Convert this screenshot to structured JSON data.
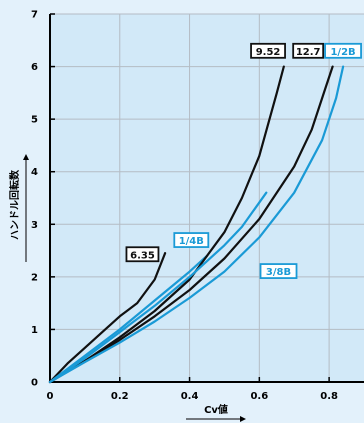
{
  "chart_data": {
    "type": "line",
    "xlabel": "Cv値",
    "ylabel": "ハンドル回転数",
    "xlim": [
      0,
      0.9
    ],
    "ylim": [
      0,
      7
    ],
    "x_ticks": [
      "0",
      "0.2",
      "0.4",
      "0.6",
      "0.8"
    ],
    "y_ticks": [
      "0",
      "1",
      "2",
      "3",
      "4",
      "5",
      "6",
      "7"
    ],
    "grid": true,
    "series": [
      {
        "name": "6.35",
        "color": "#111111",
        "label_box": "black",
        "points": [
          [
            0,
            0
          ],
          [
            0.05,
            0.35
          ],
          [
            0.1,
            0.65
          ],
          [
            0.15,
            0.95
          ],
          [
            0.2,
            1.25
          ],
          [
            0.25,
            1.5
          ],
          [
            0.3,
            1.95
          ],
          [
            0.33,
            2.45
          ]
        ]
      },
      {
        "name": "1/4B",
        "color": "#1a9ad6",
        "label_box": "blue",
        "points": [
          [
            0,
            0
          ],
          [
            0.1,
            0.5
          ],
          [
            0.2,
            1.0
          ],
          [
            0.3,
            1.55
          ],
          [
            0.4,
            2.1
          ],
          [
            0.45,
            2.4
          ]
        ]
      },
      {
        "name": "9.52",
        "color": "#111111",
        "label_box": "black",
        "points": [
          [
            0,
            0
          ],
          [
            0.1,
            0.4
          ],
          [
            0.2,
            0.85
          ],
          [
            0.3,
            1.35
          ],
          [
            0.4,
            1.95
          ],
          [
            0.5,
            2.85
          ],
          [
            0.55,
            3.5
          ],
          [
            0.6,
            4.3
          ],
          [
            0.65,
            5.5
          ],
          [
            0.67,
            6.0
          ]
        ]
      },
      {
        "name": "12.7",
        "color": "#111111",
        "label_box": "black",
        "points": [
          [
            0,
            0
          ],
          [
            0.1,
            0.4
          ],
          [
            0.2,
            0.8
          ],
          [
            0.3,
            1.25
          ],
          [
            0.4,
            1.75
          ],
          [
            0.5,
            2.35
          ],
          [
            0.6,
            3.1
          ],
          [
            0.7,
            4.1
          ],
          [
            0.75,
            4.8
          ],
          [
            0.79,
            5.6
          ],
          [
            0.81,
            6.0
          ]
        ]
      },
      {
        "name": "1/2B",
        "color": "#1a9ad6",
        "label_box": "blue",
        "points": [
          [
            0,
            0
          ],
          [
            0.1,
            0.38
          ],
          [
            0.2,
            0.75
          ],
          [
            0.3,
            1.15
          ],
          [
            0.4,
            1.6
          ],
          [
            0.5,
            2.1
          ],
          [
            0.6,
            2.75
          ],
          [
            0.7,
            3.6
          ],
          [
            0.78,
            4.6
          ],
          [
            0.82,
            5.4
          ],
          [
            0.84,
            6.0
          ]
        ]
      },
      {
        "name": "3/8B",
        "color": "#1a9ad6",
        "label_box": "blue",
        "points": [
          [
            0,
            0
          ],
          [
            0.1,
            0.45
          ],
          [
            0.2,
            0.95
          ],
          [
            0.3,
            1.45
          ],
          [
            0.4,
            2.0
          ],
          [
            0.5,
            2.6
          ],
          [
            0.55,
            2.95
          ],
          [
            0.62,
            3.6
          ]
        ]
      }
    ]
  }
}
